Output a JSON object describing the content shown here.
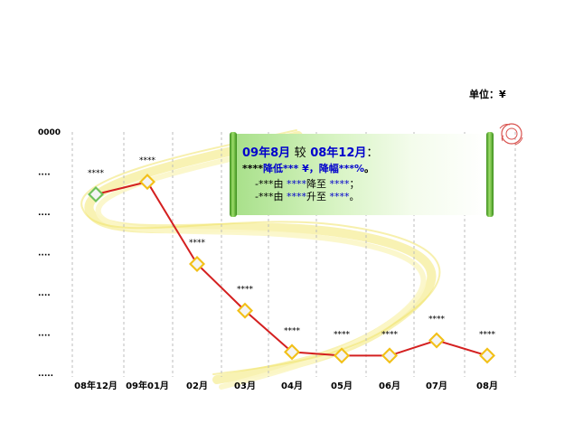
{
  "unit_label": "单位：¥",
  "callout": {
    "l1_a": "09年8月",
    "l1_b": "较",
    "l1_c": "08年12月",
    "l1_d": "：",
    "l2_a": "****",
    "l2_b": "降低*** ¥",
    "l2_c": "，降幅***%",
    "l2_d": "。",
    "l3_a": "-***由",
    "l3_b": "****",
    "l3_c": "降至",
    "l3_d": "****",
    "l3_e": "；",
    "l4_a": "-***由",
    "l4_b": "****",
    "l4_c": "升至",
    "l4_d": "****",
    "l4_e": "。"
  },
  "chart_data": {
    "type": "line",
    "categories": [
      "08年12月",
      "09年01月",
      "02月",
      "03月",
      "04月",
      "05月",
      "06月",
      "07月",
      "08月"
    ],
    "values": [
      4.45,
      4.76,
      2.72,
      1.56,
      0.53,
      0.44,
      0.44,
      0.82,
      0.44
    ],
    "data_labels": [
      "****",
      "****",
      "****",
      "****",
      "****",
      "****",
      "****",
      "****",
      "****"
    ],
    "y_tick_labels": [
      ".....",
      "....",
      "....",
      "....",
      "....",
      "....",
      "0000"
    ],
    "ylim": [
      0,
      6
    ],
    "line_color": "#d42020",
    "first_marker_color": "#6fc05a",
    "marker_color": "#f2c018",
    "grid": "vertical-dashed"
  }
}
